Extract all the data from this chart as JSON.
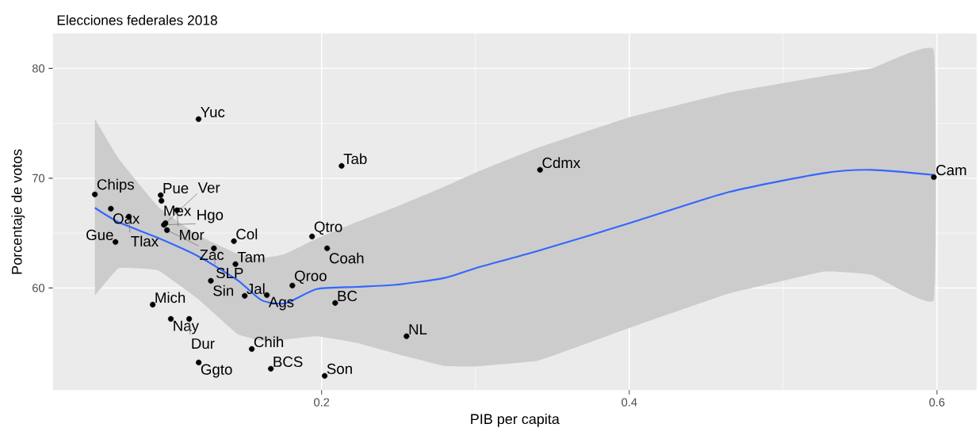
{
  "chart_data": {
    "type": "scatter",
    "title": "Elecciones federales 2018",
    "xlabel": "PIB per capita",
    "ylabel": "Porcentaje de votos",
    "xlim": [
      0.0253,
      0.6258
    ],
    "ylim": [
      50.69,
      83.18
    ],
    "xticks": [
      0.2,
      0.4,
      0.6
    ],
    "yticks": [
      60,
      70,
      80
    ],
    "grid": true,
    "series": [
      {
        "type": "scatter",
        "color": "#000000",
        "marker": "circle",
        "x": [
          0.12,
          0.213,
          0.342,
          0.598,
          0.0526,
          0.063,
          0.0747,
          0.0954,
          0.0959,
          0.106,
          0.0985,
          0.0975,
          0.0995,
          0.066,
          0.13,
          0.143,
          0.144,
          0.1938,
          0.2036,
          0.128,
          0.15,
          0.1644,
          0.181,
          0.2088,
          0.2552,
          0.0902,
          0.102,
          0.1139,
          0.1546,
          0.1201,
          0.167,
          0.202
        ],
        "values": [
          75.38,
          71.12,
          70.76,
          70.1,
          68.52,
          67.22,
          66.5,
          68.45,
          67.94,
          67.08,
          65.9,
          65.75,
          65.27,
          64.19,
          63.61,
          64.26,
          62.17,
          64.69,
          63.61,
          60.65,
          59.28,
          59.35,
          60.22,
          58.63,
          55.6,
          58.48,
          57.18,
          57.18,
          54.44,
          53.21,
          52.64,
          51.99
        ]
      },
      {
        "type": "line",
        "color": "#3366FF",
        "line_style": "solid",
        "marker": "none",
        "x": [
          0.0526,
          0.068,
          0.0938,
          0.1196,
          0.1454,
          0.1608,
          0.1763,
          0.1969,
          0.2227,
          0.2485,
          0.2794,
          0.3,
          0.3412,
          0.399,
          0.4649,
          0.5268,
          0.5577,
          0.598
        ],
        "values": [
          67.3,
          66.0,
          64.55,
          62.9,
          60.7,
          58.9,
          58.6,
          59.9,
          60.1,
          60.3,
          60.9,
          61.8,
          63.4,
          65.85,
          68.74,
          70.47,
          70.76,
          70.3
        ],
        "upper": [
          75.4,
          71.8,
          67.4,
          64.8,
          63.1,
          62.7,
          63.1,
          64.5,
          66.0,
          67.4,
          69.2,
          70.5,
          72.8,
          75.5,
          77.8,
          79.3,
          80.0,
          81.7
        ],
        "lower": [
          59.3,
          61.8,
          61.6,
          59.0,
          55.8,
          55.2,
          55.3,
          55.6,
          55.0,
          54.0,
          52.9,
          52.85,
          53.4,
          56.3,
          59.5,
          61.5,
          61.2,
          58.9
        ]
      }
    ],
    "annotations": [
      {
        "text": "Yuc",
        "x": 0.12,
        "y": 75.38
      },
      {
        "text": "Tab",
        "x": 0.213,
        "y": 71.12
      },
      {
        "text": "Cdmx",
        "x": 0.342,
        "y": 70.76
      },
      {
        "text": "Cam",
        "x": 0.598,
        "y": 70.1
      },
      {
        "text": "Chips",
        "x": 0.0526,
        "y": 68.52
      },
      {
        "text": "Oax",
        "x": 0.063,
        "y": 67.22
      },
      {
        "text": "Tlax",
        "x": 0.0747,
        "y": 66.5
      },
      {
        "text": "Pue",
        "x": 0.0954,
        "y": 68.45
      },
      {
        "text": "Mex",
        "x": 0.0959,
        "y": 67.94
      },
      {
        "text": "Mor",
        "x": 0.106,
        "y": 67.08
      },
      {
        "text": "Ver",
        "x": 0.0985,
        "y": 65.9
      },
      {
        "text": "Hgo",
        "x": 0.0975,
        "y": 65.75
      },
      {
        "text": "Zac",
        "x": 0.0995,
        "y": 65.27
      },
      {
        "text": "Gue",
        "x": 0.066,
        "y": 64.19
      },
      {
        "text": "SLP",
        "x": 0.13,
        "y": 63.61
      },
      {
        "text": "Col",
        "x": 0.143,
        "y": 64.26
      },
      {
        "text": "Tam",
        "x": 0.144,
        "y": 62.17
      },
      {
        "text": "Qtro",
        "x": 0.1938,
        "y": 64.69
      },
      {
        "text": "Coah",
        "x": 0.2036,
        "y": 63.61
      },
      {
        "text": "Sin",
        "x": 0.128,
        "y": 60.65
      },
      {
        "text": "Jal",
        "x": 0.15,
        "y": 59.28
      },
      {
        "text": "Ags",
        "x": 0.1644,
        "y": 59.35
      },
      {
        "text": "Qroo",
        "x": 0.181,
        "y": 60.22
      },
      {
        "text": "BC",
        "x": 0.2088,
        "y": 58.63
      },
      {
        "text": "NL",
        "x": 0.2552,
        "y": 55.6
      },
      {
        "text": "Mich",
        "x": 0.0902,
        "y": 58.48
      },
      {
        "text": "Nay",
        "x": 0.102,
        "y": 57.18
      },
      {
        "text": "Dur",
        "x": 0.1139,
        "y": 57.18
      },
      {
        "text": "Chih",
        "x": 0.1546,
        "y": 54.44
      },
      {
        "text": "Ggto",
        "x": 0.1201,
        "y": 53.21
      },
      {
        "text": "BCS",
        "x": 0.167,
        "y": 52.64
      },
      {
        "text": "Son",
        "x": 0.202,
        "y": 51.99
      }
    ]
  }
}
